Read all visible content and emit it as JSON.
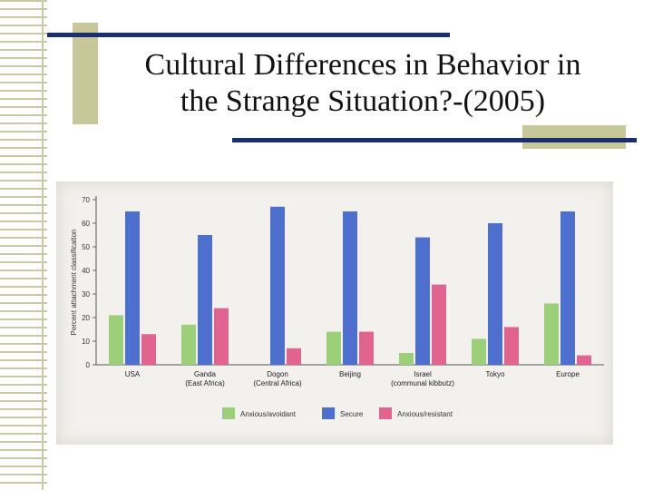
{
  "slide": {
    "title_line1": "Cultural Differences in Behavior in",
    "title_line2": "the Strange Situation?-(2005)"
  },
  "colors": {
    "accent_bar": "#1a2f6e",
    "accent_block": "#c7c79a",
    "avoidant": "#9ccf7a",
    "secure": "#4d6fce",
    "resistant": "#e0648f"
  },
  "chart_data": {
    "type": "bar",
    "title": "",
    "xlabel": "",
    "ylabel": "Percent attachment classification",
    "ylim": [
      0,
      70
    ],
    "yticks": [
      0,
      10,
      20,
      30,
      40,
      50,
      60,
      70
    ],
    "categories": [
      {
        "name": "USA",
        "sub": ""
      },
      {
        "name": "Ganda",
        "sub": "(East Africa)"
      },
      {
        "name": "Dogon",
        "sub": "(Central Africa)"
      },
      {
        "name": "Beijing",
        "sub": ""
      },
      {
        "name": "Israel",
        "sub": "(communal kibbutz)"
      },
      {
        "name": "Tokyo",
        "sub": ""
      },
      {
        "name": "Europe",
        "sub": ""
      }
    ],
    "series": [
      {
        "name": "Anxious/avoidant",
        "color": "#9ccf7a",
        "values": [
          21,
          17,
          0,
          14,
          5,
          11,
          26
        ]
      },
      {
        "name": "Secure",
        "color": "#4d6fce",
        "values": [
          65,
          55,
          67,
          65,
          54,
          60,
          65
        ]
      },
      {
        "name": "Anxious/resistant",
        "color": "#e0648f",
        "values": [
          13,
          24,
          7,
          14,
          34,
          16,
          4
        ]
      }
    ],
    "legend_position": "bottom"
  }
}
